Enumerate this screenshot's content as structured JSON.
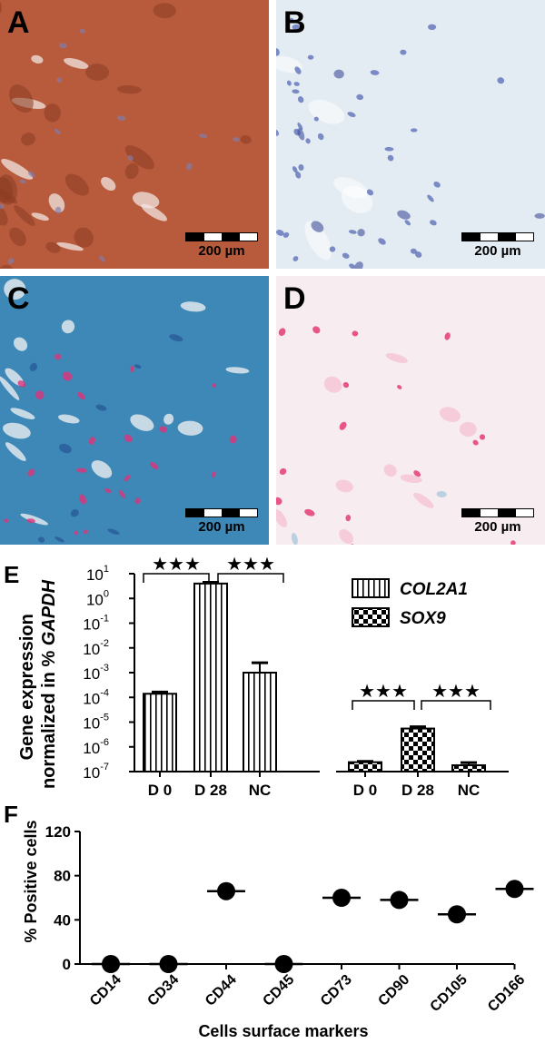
{
  "panels": {
    "A": {
      "label": "A",
      "scale": "200 µm",
      "bg": "#b85a3c"
    },
    "B": {
      "label": "B",
      "scale": "200 µm",
      "bg": "#e4ecf3"
    },
    "C": {
      "label": "C",
      "scale": "200 µm",
      "bg": "#3d88b6"
    },
    "D": {
      "label": "D",
      "scale": "200 µm",
      "bg": "#f7ecef"
    }
  },
  "chart_data": [
    {
      "type": "bar",
      "panel_label": "E",
      "ylabel": "Gene expression normalized in % GAPDH",
      "ylabel_line1": "Gene expression",
      "ylabel_line2_prefix": "normalized in % ",
      "ylabel_line2_italic": "GAPDH",
      "yscale": "log",
      "ylim": [
        1e-07,
        10
      ],
      "ytick_labels": [
        {
          "base": "10",
          "exp": "1"
        },
        {
          "base": "10",
          "exp": "0"
        },
        {
          "base": "10",
          "exp": "-1"
        },
        {
          "base": "10",
          "exp": "-2"
        },
        {
          "base": "10",
          "exp": "-3"
        },
        {
          "base": "10",
          "exp": "-4"
        },
        {
          "base": "10",
          "exp": "-5"
        },
        {
          "base": "10",
          "exp": "-6"
        },
        {
          "base": "10",
          "exp": "-7"
        }
      ],
      "categories": [
        "D 0",
        "D 28",
        "NC"
      ],
      "series": [
        {
          "name": "COL2A1",
          "pattern": "vertical-stripes",
          "values": [
            0.00014,
            4.0,
            0.001
          ],
          "errors_upper": [
            0.000165,
            4.5,
            0.0025
          ]
        },
        {
          "name": "SOX9",
          "pattern": "checker",
          "values": [
            2.4e-07,
            5.5e-06,
            1.8e-07
          ],
          "errors_upper": [
            2.6e-07,
            6.5e-06,
            2.3e-07
          ]
        }
      ],
      "significance": [
        {
          "series": "COL2A1",
          "from": "D 0",
          "to": "D 28",
          "label": "★★★"
        },
        {
          "series": "COL2A1",
          "from": "D 28",
          "to": "NC",
          "label": "★★★"
        },
        {
          "series": "SOX9",
          "from": "D 0",
          "to": "D 28",
          "label": "★★★"
        },
        {
          "series": "SOX9",
          "from": "D 28",
          "to": "NC",
          "label": "★★★"
        }
      ],
      "legend_position": "top-right"
    },
    {
      "type": "scatter",
      "panel_label": "F",
      "xlabel": "Cells surface markers",
      "ylabel": "% Positive cells",
      "ylim": [
        0,
        120
      ],
      "yticks": [
        "0",
        "40",
        "80",
        "120"
      ],
      "categories": [
        "CD14",
        "CD34",
        "CD44",
        "CD45",
        "CD73",
        "CD90",
        "CD105",
        "CD166"
      ],
      "values": [
        0,
        0,
        66,
        0,
        60,
        58,
        45,
        68
      ]
    }
  ]
}
